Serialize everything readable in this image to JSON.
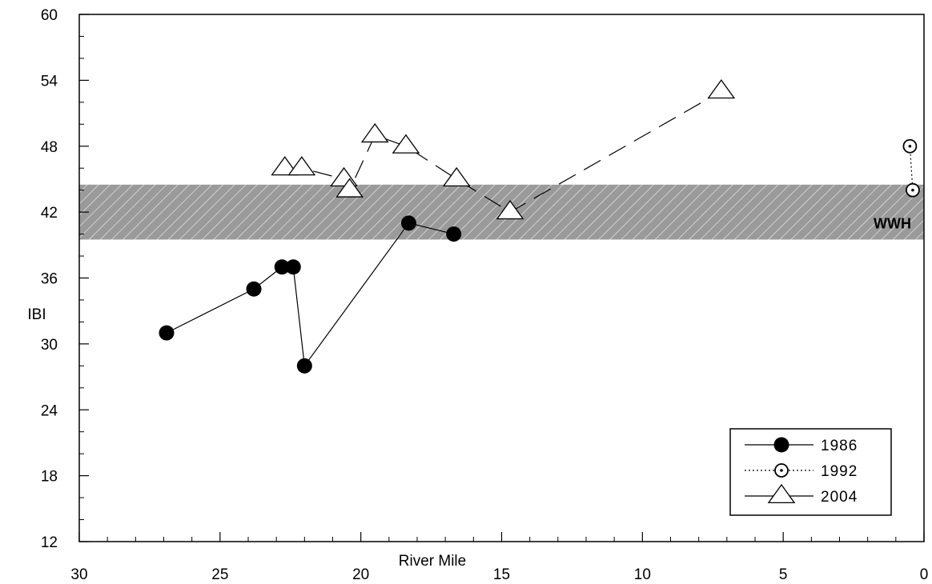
{
  "chart_data": {
    "type": "line",
    "xlabel": "River Mile",
    "ylabel": "IBI",
    "xlim": [
      30,
      0
    ],
    "x_reversed": true,
    "ylim": [
      12,
      60
    ],
    "x_ticks": [
      30,
      25,
      20,
      15,
      10,
      5,
      0
    ],
    "y_ticks": [
      12,
      18,
      24,
      30,
      36,
      42,
      48,
      54,
      60
    ],
    "grid": false,
    "legend_position": "bottom-right",
    "band": {
      "label": "WWH",
      "from": 39.5,
      "to": 44.5,
      "fill": "#9a9a9a",
      "pattern": "diagonal-hatch"
    },
    "series": [
      {
        "name": "1986",
        "marker": "filled-circle",
        "line_style": "solid",
        "color": "#000000",
        "points": [
          [
            26.9,
            31
          ],
          [
            23.8,
            35
          ],
          [
            22.8,
            37
          ],
          [
            22.4,
            37
          ],
          [
            22.0,
            28
          ],
          [
            18.3,
            41
          ],
          [
            16.7,
            40
          ]
        ]
      },
      {
        "name": "1992",
        "marker": "dotted-circle",
        "line_style": "dotted",
        "color": "#000000",
        "points": [
          [
            0.5,
            48
          ],
          [
            0.4,
            44
          ]
        ]
      },
      {
        "name": "2004",
        "marker": "open-triangle",
        "line_style": "long-dash",
        "color": "#000000",
        "points": [
          [
            22.7,
            46
          ],
          [
            22.1,
            46
          ],
          [
            20.6,
            45
          ],
          [
            20.4,
            44
          ],
          [
            19.5,
            49
          ],
          [
            18.4,
            48
          ],
          [
            16.6,
            45
          ],
          [
            14.7,
            42
          ],
          [
            7.2,
            53
          ]
        ]
      }
    ]
  }
}
